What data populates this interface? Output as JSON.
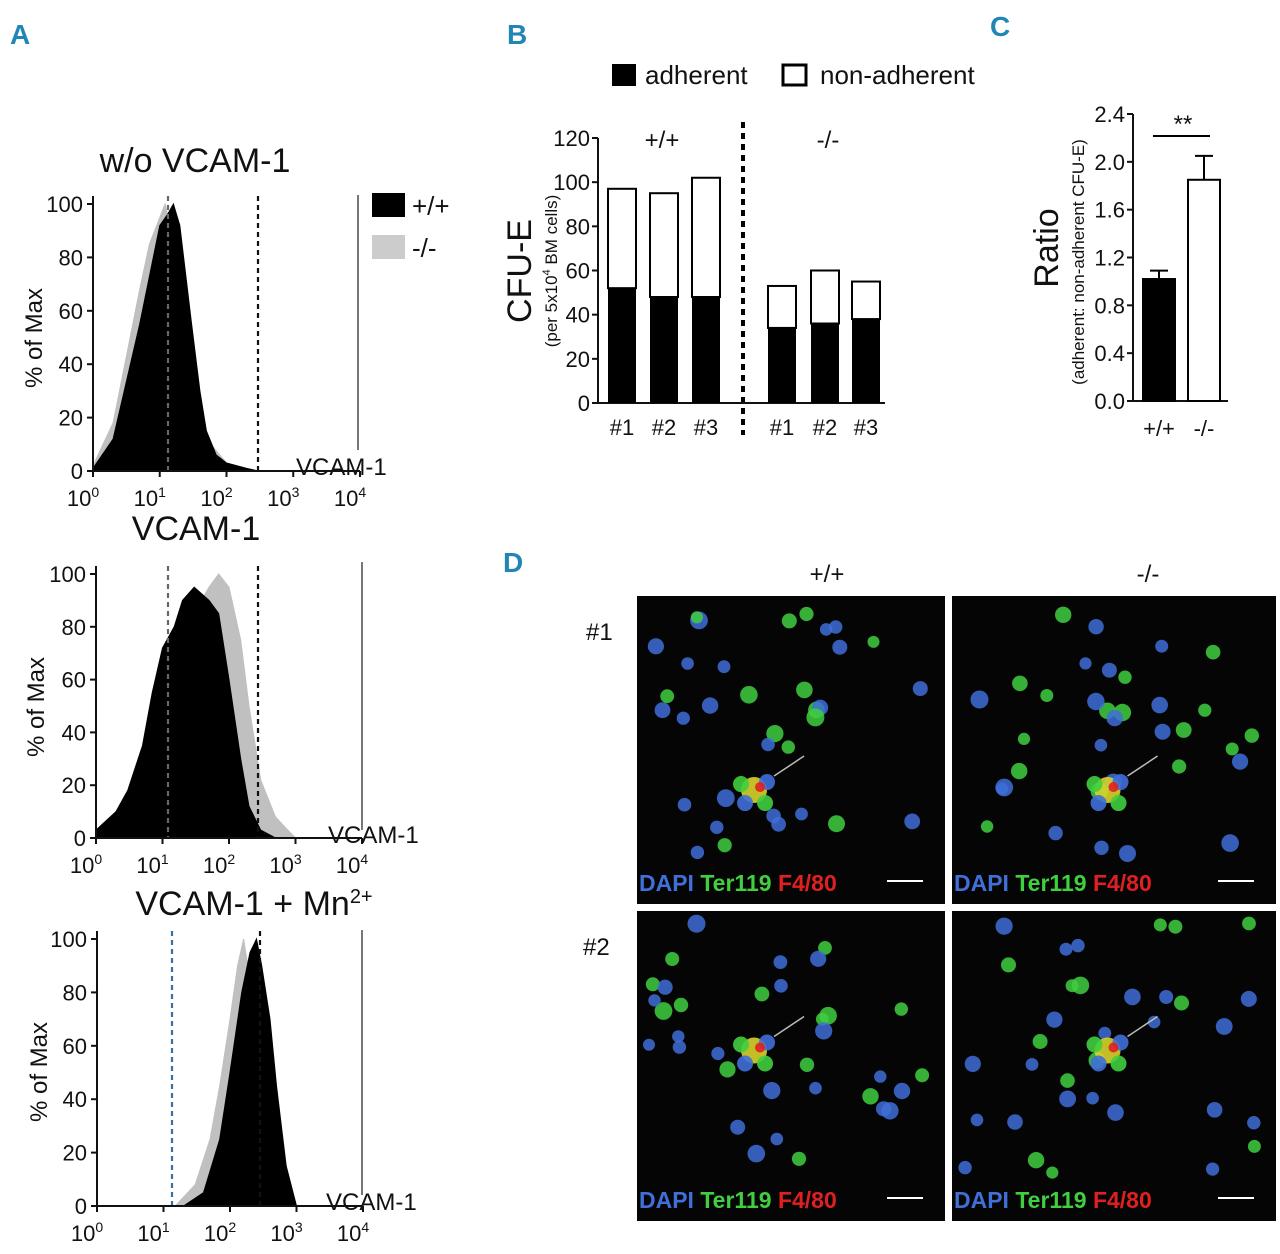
{
  "panels": {
    "A": "A",
    "B": "B",
    "C": "C",
    "D": "D"
  },
  "panel_a": {
    "legend": {
      "wt": "+/+",
      "ko": "-/-"
    },
    "ylabel": "% of Max",
    "xlabel": "VCAM-1",
    "ytick_labels": [
      "0",
      "20",
      "40",
      "60",
      "80",
      "100"
    ],
    "xtick_labels": [
      "10",
      "10",
      "10",
      "10",
      "10"
    ],
    "xtick_exps": [
      "0",
      "1",
      "2",
      "3",
      "4"
    ],
    "colors": {
      "wt": "#000000",
      "ko": "#bdbdbd"
    }
  },
  "panel_b": {
    "legend": {
      "adherent": "adherent",
      "non_adherent": "non-adherent"
    },
    "ylabel_main": "CFU-E",
    "ylabel_sub_pre": "(per 5x10",
    "ylabel_sub_sup": "4",
    "ylabel_sub_post": " BM cells)",
    "group_labels": [
      "+/+",
      "-/-"
    ],
    "ytick_labels": [
      "0",
      "20",
      "40",
      "60",
      "80",
      "100",
      "120"
    ]
  },
  "panel_c": {
    "ylabel_main": "Ratio",
    "ylabel_sub": "(adherent: non-adherent CFU-E)",
    "significance": "**",
    "ytick_labels": [
      "0.0",
      "0.4",
      "0.8",
      "1.2",
      "1.6",
      "2.0",
      "2.4"
    ]
  },
  "panel_d": {
    "col_labels": [
      "+/+",
      "-/-"
    ],
    "row_labels": [
      "#1",
      "#2"
    ],
    "stain": {
      "dapi": "DAPI",
      "ter119": "Ter119",
      "f480": "F4/80"
    },
    "stain_colors": {
      "dapi": "#3f6fd8",
      "ter119": "#3fcf3f",
      "f480": "#e02020"
    }
  },
  "chart_data": [
    {
      "type": "area",
      "title": "w/o VCAM-1",
      "xlabel": "VCAM-1",
      "ylabel": "% of Max",
      "xscale": "log",
      "xlim": [
        1,
        10000
      ],
      "ylim": [
        0,
        100
      ],
      "series": [
        {
          "name": "+/+",
          "x": [
            1,
            2,
            5,
            10,
            13,
            16,
            20,
            30,
            40,
            50,
            70,
            100,
            200,
            300
          ],
          "y": [
            1,
            12,
            55,
            92,
            96,
            100,
            92,
            55,
            30,
            15,
            6,
            3,
            1,
            0
          ]
        },
        {
          "name": "-/-",
          "x": [
            1,
            2,
            3,
            5,
            7,
            10,
            12,
            15,
            20,
            30,
            50,
            100,
            200,
            300
          ],
          "y": [
            2,
            18,
            40,
            68,
            85,
            95,
            100,
            90,
            62,
            32,
            12,
            3,
            1,
            0
          ]
        }
      ]
    },
    {
      "type": "area",
      "title": "VCAM-1",
      "xlabel": "VCAM-1",
      "ylabel": "% of Max",
      "xscale": "log",
      "xlim": [
        1,
        10000
      ],
      "ylim": [
        0,
        100
      ],
      "series": [
        {
          "name": "+/+",
          "x": [
            1,
            2,
            3,
            5,
            7,
            10,
            15,
            20,
            30,
            50,
            70,
            100,
            150,
            200,
            300,
            500
          ],
          "y": [
            3,
            10,
            18,
            35,
            55,
            72,
            80,
            90,
            95,
            90,
            85,
            60,
            30,
            12,
            3,
            0
          ]
        },
        {
          "name": "-/-",
          "x": [
            1,
            3,
            5,
            10,
            20,
            30,
            50,
            70,
            100,
            150,
            200,
            300,
            500,
            700,
            1000
          ],
          "y": [
            2,
            8,
            15,
            40,
            70,
            85,
            95,
            100,
            95,
            75,
            50,
            22,
            8,
            4,
            0
          ]
        }
      ]
    },
    {
      "type": "area",
      "title": "VCAM-1 + Mn",
      "title_sup": "2+",
      "xlabel": "VCAM-1",
      "ylabel": "% of Max",
      "xscale": "log",
      "xlim": [
        1,
        10000
      ],
      "ylim": [
        0,
        100
      ],
      "series": [
        {
          "name": "+/+",
          "x": [
            20,
            40,
            70,
            100,
            150,
            200,
            250,
            300,
            400,
            500,
            700,
            1000
          ],
          "y": [
            0,
            5,
            25,
            50,
            80,
            95,
            100,
            90,
            70,
            45,
            15,
            0
          ]
        },
        {
          "name": "-/-",
          "x": [
            15,
            30,
            50,
            70,
            100,
            130,
            160,
            200,
            250,
            300,
            400,
            600
          ],
          "y": [
            0,
            8,
            25,
            45,
            70,
            90,
            100,
            85,
            60,
            30,
            10,
            0
          ]
        }
      ]
    },
    {
      "type": "bar",
      "stacked": true,
      "xlabel": "",
      "ylabel": "CFU-E (per 5x10^4 BM cells)",
      "ylim": [
        0,
        120
      ],
      "categories": [
        "#1",
        "#2",
        "#3",
        "#1",
        "#2",
        "#3"
      ],
      "groups": [
        "+/+",
        "+/+",
        "+/+",
        "-/-",
        "-/-",
        "-/-"
      ],
      "series": [
        {
          "name": "adherent",
          "values": [
            52,
            48,
            48,
            34,
            36,
            38
          ]
        },
        {
          "name": "non-adherent",
          "values": [
            45,
            47,
            54,
            19,
            24,
            17
          ]
        }
      ]
    },
    {
      "type": "bar",
      "xlabel": "",
      "ylabel": "Ratio (adherent: non-adherent CFU-E)",
      "ylim": [
        0,
        2.4
      ],
      "categories": [
        "+/+",
        "-/-"
      ],
      "values": [
        1.02,
        1.85
      ],
      "errors": [
        0.07,
        0.2
      ]
    }
  ]
}
